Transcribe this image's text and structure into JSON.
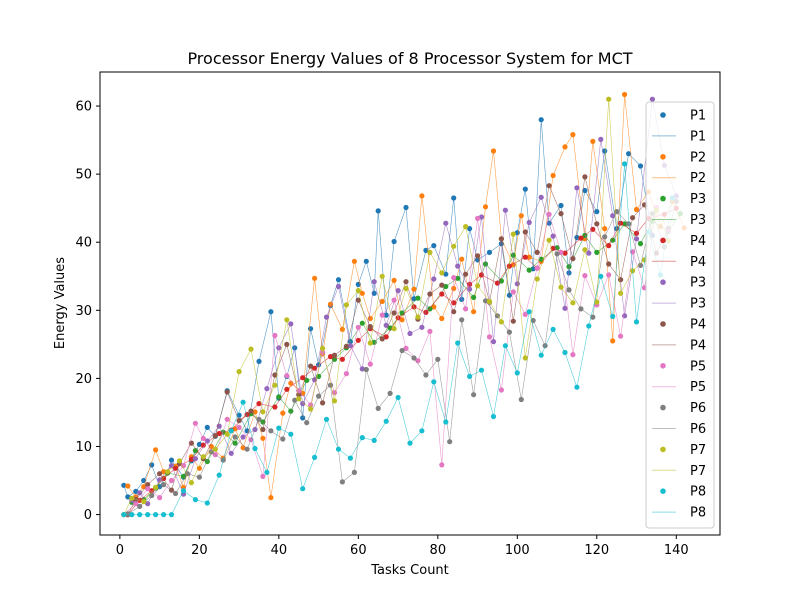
{
  "chart_data": {
    "type": "scatter",
    "title": "Processor Energy Values of 8 Processor System for MCT",
    "xlabel": "Tasks Count",
    "ylabel": "Energy Values",
    "xlim": [
      -5,
      151
    ],
    "ylim": [
      -3,
      65
    ],
    "xticks": [
      0,
      20,
      40,
      60,
      80,
      100,
      120,
      140
    ],
    "yticks": [
      0,
      10,
      20,
      30,
      40,
      50,
      60
    ],
    "grid": false,
    "legend_position": "right",
    "series": [
      {
        "name": "P1",
        "color": "#1f77b4",
        "x": [
          1,
          2,
          4,
          6,
          8,
          10,
          12,
          13,
          16,
          18,
          20,
          22,
          24,
          27,
          30,
          32,
          35,
          38,
          40,
          42,
          44,
          46,
          48,
          50,
          53,
          55,
          58,
          60,
          62,
          64,
          65,
          67,
          69,
          72,
          74,
          77,
          79,
          82,
          84,
          86,
          88,
          90,
          93,
          96,
          98,
          100,
          102,
          104,
          106,
          108,
          111,
          113,
          115,
          117,
          120,
          122,
          125,
          128,
          131,
          134
        ],
        "y": [
          4.3,
          2.6,
          3.4,
          5.0,
          7.3,
          4.1,
          6.2,
          8.0,
          5.5,
          7.9,
          10.3,
          12.8,
          11.5,
          18.2,
          14.6,
          12.3,
          22.5,
          29.8,
          17.1,
          20.3,
          24.5,
          14.2,
          27.3,
          22.0,
          30.7,
          34.5,
          25.4,
          33.8,
          37.2,
          32.5,
          44.6,
          29.3,
          40.1,
          45.1,
          31.7,
          38.8,
          39.5,
          35.3,
          46.5,
          31.6,
          42.0,
          37.4,
          38.5,
          39.8,
          32.2,
          41.4,
          47.8,
          36.1,
          58.0,
          42.8,
          45.4,
          35.5,
          40.7,
          47.6,
          44.5,
          53.4,
          42.0,
          53.0,
          51.2,
          41.0
        ]
      },
      {
        "name": "P2",
        "color": "#ff7f0e",
        "x": [
          2,
          4,
          6,
          9,
          11,
          14,
          16,
          18,
          20,
          23,
          26,
          29,
          31,
          34,
          36,
          38,
          41,
          43,
          46,
          49,
          51,
          53,
          56,
          59,
          61,
          63,
          66,
          69,
          71,
          74,
          76,
          79,
          81,
          84,
          86,
          89,
          92,
          94,
          96,
          99,
          101,
          103,
          106,
          109,
          112,
          114,
          117,
          119,
          122,
          124,
          127,
          130,
          133,
          136,
          139,
          142
        ],
        "y": [
          4.2,
          2.6,
          4.1,
          9.5,
          6.3,
          7.1,
          4.0,
          8.5,
          6.8,
          10.0,
          8.3,
          12.6,
          9.8,
          15.1,
          11.2,
          2.5,
          14.9,
          19.3,
          17.8,
          34.7,
          23.6,
          30.9,
          27.2,
          37.2,
          32.5,
          28.8,
          31.3,
          34.4,
          28.6,
          33.1,
          46.8,
          30.5,
          28.8,
          33.2,
          37.5,
          29.8,
          45.2,
          53.4,
          40.5,
          36.7,
          43.9,
          37.8,
          37.2,
          49.8,
          54.0,
          55.8,
          40.5,
          54.8,
          42.0,
          25.5,
          61.7,
          44.8,
          47.4,
          42.3,
          46.0,
          42.1
        ]
      },
      {
        "name": "P3",
        "color": "#2ca02c",
        "x": [
          3,
          6,
          9,
          12,
          16,
          19,
          22,
          26,
          29,
          33,
          36,
          40,
          43,
          47,
          50,
          54,
          57,
          61,
          64,
          68,
          71,
          75,
          78,
          82,
          85,
          89,
          92,
          96,
          99,
          103,
          106,
          110,
          113,
          117,
          120,
          124,
          127,
          131,
          134,
          138,
          141
        ],
        "y": [
          1.8,
          2.2,
          3.9,
          6.1,
          5.6,
          9.4,
          7.8,
          12.1,
          10.5,
          14.8,
          13.6,
          17.3,
          15.2,
          19.7,
          20.3,
          22.8,
          24.5,
          28.1,
          25.3,
          27.4,
          29.6,
          31.8,
          30.2,
          33.5,
          34.7,
          31.9,
          36.8,
          34.3,
          38.1,
          35.9,
          37.5,
          39.2,
          36.4,
          41.0,
          38.5,
          40.3,
          42.7,
          39.8,
          43.1,
          41.6,
          44.2
        ]
      },
      {
        "name": "P4",
        "color": "#d62728",
        "x": [
          2,
          5,
          8,
          11,
          14,
          18,
          21,
          25,
          28,
          32,
          35,
          39,
          42,
          46,
          49,
          53,
          56,
          60,
          63,
          67,
          70,
          74,
          77,
          81,
          84,
          88,
          91,
          95,
          98,
          102,
          105,
          109,
          112,
          116,
          119,
          123,
          126,
          130,
          133,
          137,
          140
        ],
        "y": [
          0.0,
          2.1,
          3.5,
          5.3,
          6.8,
          8.1,
          10.2,
          11.9,
          12.4,
          14.7,
          16.3,
          15.8,
          18.4,
          20.1,
          21.5,
          23.2,
          22.8,
          25.6,
          27.3,
          26.1,
          28.9,
          30.5,
          29.7,
          32.4,
          31.1,
          33.8,
          35.2,
          34.0,
          36.5,
          37.8,
          36.2,
          39.1,
          38.4,
          40.6,
          41.9,
          39.5,
          42.8,
          41.3,
          43.5,
          44.1,
          45.0
        ]
      },
      {
        "name": "P3",
        "color": "#9467bd",
        "x": [
          3,
          5,
          7,
          10,
          13,
          16,
          19,
          22,
          25,
          28,
          31,
          34,
          37,
          40,
          43,
          46,
          49,
          52,
          55,
          58,
          61,
          64,
          67,
          70,
          73,
          76,
          79,
          82,
          85,
          88,
          91,
          94,
          97,
          100,
          103,
          106,
          109,
          112,
          115,
          118,
          121,
          124,
          127,
          130,
          134,
          137,
          140
        ],
        "y": [
          2.1,
          3.2,
          1.6,
          5.1,
          7.2,
          3.0,
          8.2,
          10.8,
          13.0,
          9.0,
          11.4,
          12.5,
          18.5,
          24.5,
          28.0,
          16.3,
          19.8,
          29.0,
          33.5,
          24.8,
          21.4,
          34.2,
          27.8,
          32.9,
          26.6,
          27.5,
          34.6,
          42.8,
          36.5,
          33.1,
          43.7,
          25.4,
          44.7,
          33.9,
          42.9,
          46.6,
          40.9,
          30.3,
          48.0,
          38.4,
          55.1,
          43.9,
          29.2,
          40.5,
          61.0,
          51.3,
          46.8
        ]
      },
      {
        "name": "P4",
        "color": "#8c564b",
        "x": [
          2,
          4,
          7,
          10,
          13,
          15,
          18,
          21,
          24,
          27,
          30,
          33,
          36,
          39,
          42,
          45,
          48,
          51,
          54,
          57,
          60,
          63,
          66,
          69,
          72,
          75,
          78,
          81,
          84,
          87,
          90,
          93,
          96,
          99,
          102,
          105,
          108,
          111,
          114,
          117,
          120,
          123,
          126,
          129,
          132,
          135,
          138
        ],
        "y": [
          0.0,
          2.2,
          4.4,
          6.0,
          3.6,
          7.5,
          10.5,
          8.2,
          11.6,
          18.0,
          13.8,
          15.2,
          12.5,
          20.5,
          25.0,
          17.6,
          21.8,
          16.4,
          23.4,
          24.7,
          31.5,
          27.6,
          25.8,
          29.6,
          34.2,
          28.7,
          32.4,
          33.7,
          29.8,
          35.3,
          38.0,
          31.2,
          40.5,
          28.4,
          41.5,
          38.5,
          48.3,
          44.2,
          37.6,
          49.6,
          42.7,
          36.8,
          34.5,
          43.6,
          45.5,
          38.4,
          42.0
        ]
      },
      {
        "name": "P5",
        "color": "#e377c2",
        "x": [
          1,
          4,
          7,
          10,
          13,
          16,
          19,
          21,
          24,
          27,
          30,
          33,
          36,
          39,
          42,
          45,
          48,
          51,
          54,
          57,
          60,
          63,
          66,
          69,
          72,
          75,
          78,
          81,
          84,
          87,
          90,
          93,
          96,
          99,
          102,
          105,
          108,
          111,
          114,
          117,
          120,
          123,
          126,
          129,
          132,
          135,
          138
        ],
        "y": [
          0.0,
          1.6,
          3.8,
          2.5,
          5.0,
          7.2,
          13.4,
          11.2,
          8.8,
          14.0,
          12.8,
          11.0,
          5.6,
          26.3,
          20.4,
          18.2,
          16.1,
          23.8,
          17.9,
          20.7,
          27.5,
          22.1,
          29.3,
          31.5,
          24.4,
          22.6,
          26.9,
          7.3,
          34.8,
          30.2,
          43.5,
          26.1,
          18.3,
          32.7,
          29.4,
          36.2,
          44.1,
          38.5,
          23.5,
          35.1,
          30.8,
          35.2,
          26.2,
          38.6,
          33.3,
          45.1,
          41.7
        ]
      },
      {
        "name": "P6",
        "color": "#7f7f7f",
        "x": [
          2,
          5,
          8,
          11,
          14,
          17,
          20,
          23,
          26,
          29,
          32,
          35,
          38,
          41,
          44,
          47,
          50,
          53,
          56,
          59,
          62,
          65,
          68,
          71,
          74,
          77,
          80,
          83,
          86,
          89,
          92,
          95,
          98,
          101,
          104,
          107,
          110,
          113,
          116,
          119,
          122,
          125,
          128,
          131,
          134,
          137,
          140
        ],
        "y": [
          0.1,
          1.2,
          2.8,
          4.4,
          3.1,
          6.0,
          5.5,
          9.2,
          8.0,
          11.4,
          9.6,
          14.0,
          12.3,
          11.1,
          16.8,
          13.5,
          17.4,
          19.0,
          4.8,
          6.2,
          21.3,
          15.6,
          17.8,
          24.1,
          23.0,
          20.5,
          22.8,
          10.7,
          28.6,
          17.6,
          31.4,
          29.2,
          26.8,
          16.9,
          28.5,
          24.8,
          38.3,
          33.0,
          30.2,
          29.0,
          40.8,
          44.5,
          42.7,
          36.6,
          44.2,
          39.3,
          46.0
        ]
      },
      {
        "name": "P7",
        "color": "#bcbd22",
        "x": [
          1,
          3,
          6,
          9,
          12,
          15,
          18,
          21,
          24,
          27,
          30,
          33,
          36,
          39,
          42,
          45,
          48,
          51,
          54,
          57,
          60,
          63,
          66,
          69,
          72,
          75,
          78,
          81,
          84,
          87,
          90,
          93,
          96,
          99,
          102,
          105,
          108,
          111,
          114,
          117,
          120,
          123,
          126,
          129,
          132,
          135,
          138
        ],
        "y": [
          0.0,
          2.4,
          1.9,
          4.0,
          6.3,
          7.9,
          4.7,
          8.5,
          9.6,
          11.8,
          21.0,
          24.3,
          15.1,
          19.0,
          28.6,
          17.0,
          15.5,
          24.4,
          16.7,
          30.8,
          32.9,
          25.2,
          35.0,
          27.3,
          33.2,
          29.0,
          38.5,
          35.5,
          39.4,
          42.3,
          33.6,
          31.3,
          28.3,
          41.2,
          23.0,
          34.6,
          40.3,
          33.4,
          31.1,
          38.9,
          31.2,
          61.0,
          32.5,
          35.8,
          37.4,
          44.7,
          40.2
        ]
      },
      {
        "name": "P8",
        "color": "#17becf",
        "x": [
          1,
          3,
          5,
          7,
          9,
          11,
          13,
          16,
          19,
          22,
          25,
          28,
          31,
          34,
          37,
          40,
          43,
          46,
          49,
          52,
          55,
          58,
          61,
          64,
          67,
          70,
          73,
          76,
          79,
          82,
          85,
          88,
          91,
          94,
          97,
          100,
          103,
          106,
          109,
          112,
          115,
          118,
          121,
          124,
          127,
          130,
          133,
          136,
          139
        ],
        "y": [
          0.0,
          0.0,
          0.0,
          0.0,
          0.0,
          0.0,
          0.0,
          3.5,
          2.2,
          1.7,
          5.8,
          12.3,
          16.5,
          9.7,
          6.2,
          12.7,
          11.8,
          3.8,
          8.4,
          14.0,
          9.6,
          8.3,
          11.3,
          10.9,
          13.7,
          17.2,
          10.5,
          12.3,
          19.5,
          13.6,
          25.2,
          20.3,
          21.2,
          14.4,
          24.8,
          20.8,
          29.8,
          23.4,
          27.2,
          23.8,
          18.7,
          27.7,
          35.0,
          29.1,
          51.5,
          28.3,
          41.5,
          35.2,
          46.5
        ]
      }
    ]
  }
}
